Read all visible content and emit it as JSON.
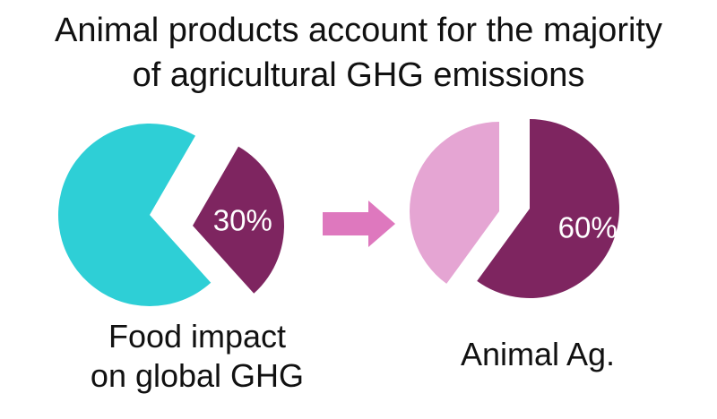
{
  "title_lines": [
    "Animal products account for the majority",
    "of agricultural GHG emissions"
  ],
  "colors": {
    "teal": "#2ECFD6",
    "plum": "#7E2560",
    "pink": "#E5A5D3",
    "arrow": "#DE78BE"
  },
  "chart_data": [
    {
      "type": "pie",
      "caption_lines": [
        "Food impact",
        "on global GHG"
      ],
      "slices": [
        {
          "label": "30%",
          "value": 30,
          "color": "#7E2560",
          "exploded": true
        },
        {
          "label": "",
          "value": 70,
          "color": "#2ECFD6",
          "exploded": false
        }
      ]
    },
    {
      "type": "pie",
      "caption_lines": [
        "Animal Ag."
      ],
      "slices": [
        {
          "label": "60%",
          "value": 60,
          "color": "#7E2560",
          "exploded": true
        },
        {
          "label": "",
          "value": 40,
          "color": "#E5A5D3",
          "exploded": false
        }
      ]
    }
  ],
  "arrow_icon": "right-arrow-icon"
}
